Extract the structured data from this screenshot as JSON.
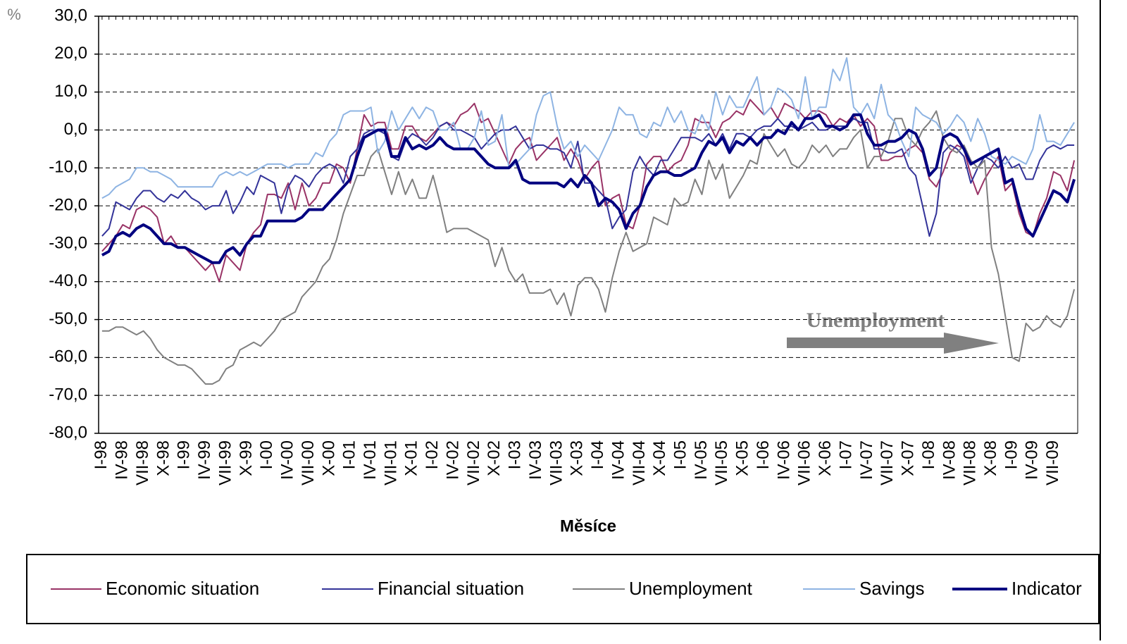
{
  "chart_data": {
    "type": "line",
    "y_label": "%",
    "x_label": "Měsíce",
    "annotation": "Unemployment",
    "grid": true,
    "ylim": [
      -80,
      30
    ],
    "yticks": [
      {
        "value": 30,
        "label": "30,0"
      },
      {
        "value": 20,
        "label": "20,0"
      },
      {
        "value": 10,
        "label": "10,0"
      },
      {
        "value": 0,
        "label": "0,0"
      },
      {
        "value": -10,
        "label": "-10,0"
      },
      {
        "value": -20,
        "label": "-20,0"
      },
      {
        "value": -30,
        "label": "-30,0"
      },
      {
        "value": -40,
        "label": "-40,0"
      },
      {
        "value": -50,
        "label": "-50,0"
      },
      {
        "value": -60,
        "label": "-60,0"
      },
      {
        "value": -70,
        "label": "-70,0"
      },
      {
        "value": -80,
        "label": "-80,0"
      }
    ],
    "categories": [
      "I-98",
      null,
      null,
      "IV-98",
      null,
      null,
      "VII-98",
      null,
      null,
      "X-98",
      null,
      null,
      "I-99",
      null,
      null,
      "IV-99",
      null,
      null,
      "VII-99",
      null,
      null,
      "X-99",
      null,
      null,
      "I-00",
      null,
      null,
      "IV-00",
      null,
      null,
      "VII-00",
      null,
      null,
      "X-00",
      null,
      null,
      "I-01",
      null,
      null,
      "IV-01",
      null,
      null,
      "VII-01",
      null,
      null,
      "X-01",
      null,
      null,
      "I-02",
      null,
      null,
      "IV-02",
      null,
      null,
      "VII-02",
      null,
      null,
      "X-02",
      null,
      null,
      "I-03",
      null,
      null,
      "IV-03",
      null,
      null,
      "VII-03",
      null,
      null,
      "X-03",
      null,
      null,
      "I-04",
      null,
      null,
      "IV-04",
      null,
      null,
      "VII-04",
      null,
      null,
      "X-04",
      null,
      null,
      "I-05",
      null,
      null,
      "IV-05",
      null,
      null,
      "VII-05",
      null,
      null,
      "X-05",
      null,
      null,
      "I-06",
      null,
      null,
      "IV-06",
      null,
      null,
      "VII-06",
      null,
      null,
      "X-06",
      null,
      null,
      "I-07",
      null,
      null,
      "IV-07",
      null,
      null,
      "VII-07",
      null,
      null,
      "X-07",
      null,
      null,
      "I-08",
      null,
      null,
      "IV-08",
      null,
      null,
      "VII-08",
      null,
      null,
      "X-08",
      null,
      null,
      "I-09",
      null,
      null,
      "IV-09",
      null,
      null,
      "VII-09",
      null,
      null,
      null
    ],
    "series": [
      {
        "name": "Economic situation",
        "color": "#993366",
        "width": 2,
        "values": [
          -32,
          -30,
          -28,
          -25,
          -26,
          -21,
          -20,
          -21,
          -23,
          -30,
          -28,
          -31,
          -31,
          -33,
          -35,
          -37,
          -35,
          -40,
          -33,
          -35,
          -37,
          -30,
          -27,
          -25,
          -17,
          -17,
          -18,
          -14,
          -21,
          -14,
          -20,
          -18,
          -14,
          -14,
          -9,
          -10,
          -14,
          -5,
          4,
          1,
          2,
          2,
          -5,
          -5,
          1,
          1,
          -2,
          -3,
          -1,
          1,
          2,
          1,
          4,
          5,
          7,
          2,
          3,
          -1,
          -5,
          -9,
          -5,
          -3,
          -2,
          -8,
          -6,
          -4,
          -2,
          -8,
          -5,
          -8,
          -13,
          -10,
          -8,
          -20,
          -18,
          -17,
          -25,
          -26,
          -20,
          -9,
          -7,
          -7,
          -11,
          -9,
          -8,
          -4,
          3,
          2,
          2,
          -2,
          2,
          3,
          5,
          4,
          8,
          6,
          4,
          6,
          3,
          7,
          6,
          5,
          3,
          5,
          5,
          4,
          1,
          3,
          2,
          4,
          1,
          3,
          1,
          -8,
          -8,
          -7,
          -7,
          -5,
          -4,
          -6,
          -13,
          -15,
          -11,
          -6,
          -4,
          -5,
          -12,
          -17,
          -13,
          -10,
          -7,
          -16,
          -14,
          -22,
          -27,
          -28,
          -22,
          -18,
          -11,
          -12,
          -16,
          -8
        ]
      },
      {
        "name": "Financial situation",
        "color": "#333399",
        "width": 2,
        "values": [
          -28,
          -26,
          -19,
          -20,
          -21,
          -18,
          -16,
          -16,
          -18,
          -19,
          -17,
          -18,
          -16,
          -18,
          -19,
          -21,
          -20,
          -20,
          -16,
          -22,
          -19,
          -15,
          -17,
          -12,
          -13,
          -14,
          -22,
          -15,
          -12,
          -13,
          -15,
          -12,
          -10,
          -9,
          -10,
          -14,
          -7,
          -5,
          -1,
          0,
          0,
          -1,
          -7,
          -8,
          -3,
          -1,
          -2,
          -4,
          -2,
          1,
          2,
          0,
          0,
          -1,
          -2,
          -5,
          -3,
          -1,
          0,
          0,
          1,
          -2,
          -5,
          -4,
          -4,
          -5,
          -5,
          -6,
          -10,
          -3,
          -14,
          -14,
          -16,
          -18,
          -26,
          -23,
          -21,
          -11,
          -7,
          -10,
          -12,
          -8,
          -8,
          -5,
          -2,
          -2,
          -2,
          -3,
          -1,
          -4,
          -1,
          -5,
          -1,
          -1,
          -2,
          0,
          1,
          1,
          3,
          1,
          1,
          0,
          1,
          2,
          0,
          0,
          1,
          1,
          1,
          3,
          2,
          2,
          -5,
          -5,
          -6,
          -6,
          -5,
          -10,
          -12,
          -20,
          -28,
          -22,
          -6,
          -4,
          -5,
          -7,
          -14,
          -10,
          -7,
          -8,
          -10,
          -7,
          -10,
          -9,
          -13,
          -13,
          -8,
          -5,
          -4,
          -5,
          -4,
          -4
        ]
      },
      {
        "name": "Unemployment",
        "color": "#808080",
        "width": 2,
        "values": [
          -53,
          -53,
          -52,
          -52,
          -53,
          -54,
          -53,
          -55,
          -58,
          -60,
          -61,
          -62,
          -62,
          -63,
          -65,
          -67,
          -67,
          -66,
          -63,
          -62,
          -58,
          -57,
          -56,
          -57,
          -55,
          -53,
          -50,
          -49,
          -48,
          -44,
          -42,
          -40,
          -36,
          -34,
          -29,
          -22,
          -17,
          -12,
          -12,
          -7,
          -5,
          -11,
          -17,
          -11,
          -17,
          -13,
          -18,
          -18,
          -12,
          -19,
          -27,
          -26,
          -26,
          -26,
          -27,
          -28,
          -29,
          -36,
          -31,
          -37,
          -40,
          -38,
          -43,
          -43,
          -43,
          -42,
          -46,
          -43,
          -49,
          -41,
          -39,
          -39,
          -42,
          -48,
          -39,
          -32,
          -27,
          -32,
          -31,
          -30,
          -23,
          -24,
          -25,
          -18,
          -20,
          -19,
          -13,
          -17,
          -8,
          -13,
          -9,
          -18,
          -15,
          -12,
          -8,
          -9,
          -1,
          -4,
          -7,
          -5,
          -9,
          -10,
          -8,
          -4,
          -6,
          -4,
          -7,
          -5,
          -5,
          -2,
          0,
          -10,
          -7,
          -7,
          -3,
          3,
          3,
          -2,
          -4,
          0,
          2,
          5,
          -2,
          -5,
          -6,
          -4,
          -8,
          -10,
          -8,
          -31,
          -38,
          -49,
          -60,
          -61,
          -51,
          -53,
          -52,
          -49,
          -51,
          -52,
          -49,
          -42
        ]
      },
      {
        "name": "Savings",
        "color": "#8eb4e3",
        "width": 2,
        "values": [
          -18,
          -17,
          -15,
          -14,
          -13,
          -10,
          -10,
          -11,
          -11,
          -12,
          -13,
          -15,
          -15,
          -15,
          -15,
          -15,
          -15,
          -12,
          -11,
          -12,
          -11,
          -12,
          -11,
          -10,
          -9,
          -9,
          -9,
          -10,
          -9,
          -9,
          -9,
          -6,
          -7,
          -3,
          -1,
          4,
          5,
          5,
          5,
          6,
          -6,
          -3,
          5,
          0,
          3,
          6,
          3,
          6,
          5,
          0,
          0,
          2,
          -5,
          -5,
          -2,
          5,
          -4,
          -3,
          4,
          -10,
          -9,
          -7,
          -5,
          4,
          9,
          10,
          1,
          -5,
          -3,
          -7,
          -4,
          -6,
          -8,
          -4,
          0,
          6,
          4,
          4,
          -1,
          -2,
          2,
          1,
          6,
          2,
          5,
          0,
          -1,
          4,
          0,
          10,
          4,
          9,
          6,
          6,
          10,
          14,
          4,
          6,
          11,
          10,
          8,
          3,
          14,
          3,
          6,
          6,
          16,
          13,
          19,
          6,
          4,
          7,
          3,
          12,
          4,
          2,
          -3,
          -7,
          6,
          4,
          3,
          2,
          -1,
          1,
          4,
          2,
          -3,
          3,
          -1,
          -7,
          -8,
          -9,
          -7,
          -8,
          -9,
          -5,
          4,
          -3,
          -3,
          -4,
          -1,
          2
        ]
      },
      {
        "name": "Indicator",
        "color": "#000080",
        "width": 4,
        "values": [
          -33,
          -32,
          -28,
          -27,
          -28,
          -26,
          -25,
          -26,
          -28,
          -30,
          -30,
          -31,
          -31,
          -32,
          -33,
          -34,
          -35,
          -35,
          -32,
          -31,
          -33,
          -30,
          -28,
          -28,
          -24,
          -24,
          -24,
          -24,
          -24,
          -23,
          -21,
          -21,
          -21,
          -19,
          -17,
          -15,
          -13,
          -7,
          -2,
          -1,
          0,
          0,
          -7,
          -7,
          -2,
          -5,
          -4,
          -5,
          -4,
          -2,
          -4,
          -5,
          -5,
          -5,
          -5,
          -7,
          -9,
          -10,
          -10,
          -10,
          -8,
          -13,
          -14,
          -14,
          -14,
          -14,
          -14,
          -15,
          -13,
          -15,
          -12,
          -14,
          -20,
          -18,
          -19,
          -21,
          -26,
          -22,
          -20,
          -15,
          -12,
          -11,
          -11,
          -12,
          -12,
          -11,
          -10,
          -6,
          -3,
          -4,
          -2,
          -6,
          -3,
          -4,
          -2,
          -4,
          -2,
          -2,
          0,
          -1,
          2,
          0,
          3,
          3,
          4,
          1,
          1,
          0,
          1,
          4,
          4,
          -1,
          -4,
          -4,
          -3,
          -3,
          -2,
          0,
          -1,
          -5,
          -12,
          -10,
          -2,
          -1,
          -2,
          -5,
          -9,
          -8,
          -7,
          -6,
          -5,
          -14,
          -13,
          -20,
          -26,
          -28,
          -24,
          -20,
          -16,
          -17,
          -19,
          -13
        ]
      }
    ]
  }
}
